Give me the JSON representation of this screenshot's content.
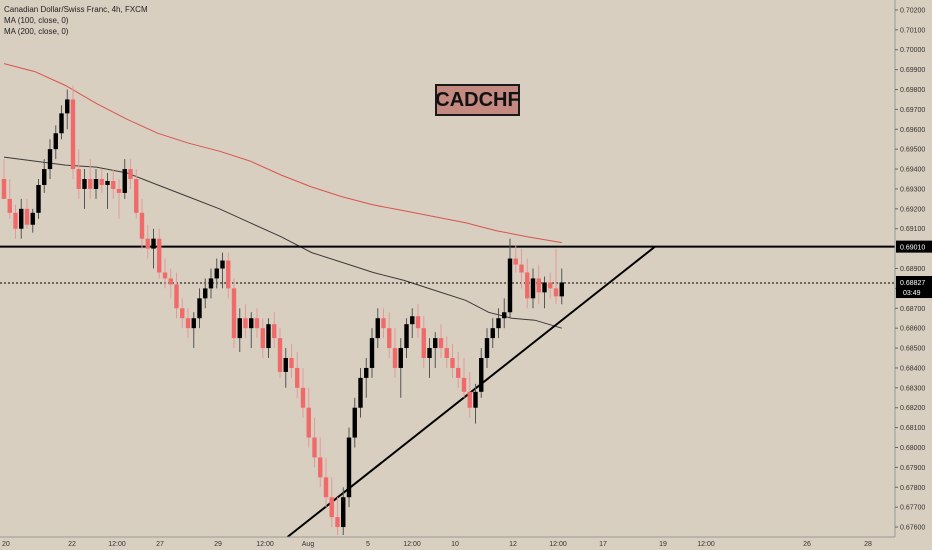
{
  "chart_data": {
    "type": "candlestick",
    "title": "Canadian Dollar/Swiss Franc, 4h, FXCM",
    "indicators": [
      "MA (100, close, 0)",
      "MA (200, close, 0)"
    ],
    "symbol_label": "CADCHF",
    "y_range": [
      0.6755,
      0.7025
    ],
    "y_ticks": [
      0.702,
      0.701,
      0.7,
      0.699,
      0.698,
      0.697,
      0.696,
      0.695,
      0.694,
      0.693,
      0.692,
      0.691,
      0.689,
      0.688,
      0.687,
      0.686,
      0.685,
      0.684,
      0.683,
      0.682,
      0.681,
      0.68,
      0.679,
      0.678,
      0.677,
      0.676
    ],
    "y_tick_labels": [
      "0.70200",
      "0.70100",
      "0.70000",
      "0.69900",
      "0.69800",
      "0.69700",
      "0.69600",
      "0.69500",
      "0.69400",
      "0.69300",
      "0.69200",
      "0.69100",
      "0.68900",
      "0.68800",
      "0.68700",
      "0.68600",
      "0.68500",
      "0.68400",
      "0.68300",
      "0.68200",
      "0.68100",
      "0.68000",
      "0.67900",
      "0.67800",
      "0.67700",
      "0.67600"
    ],
    "x_tick_labels": [
      "20",
      "22",
      "12:00",
      "27",
      "29",
      "12:00",
      "Aug",
      "5",
      "12:00",
      "10",
      "12",
      "12:00",
      "17",
      "19",
      "12:00",
      "26",
      "28"
    ],
    "bar_index_range": [
      0,
      200
    ],
    "x_ticks": [
      0,
      13,
      26,
      40,
      53,
      66,
      79,
      92,
      105,
      118,
      130,
      143,
      155,
      168,
      181,
      194,
      207
    ],
    "support_level": {
      "value": 0.6901,
      "label": "0.69010"
    },
    "current_price": {
      "value": 0.68827,
      "label": "0.68827",
      "countdown": "03:49"
    },
    "trendline": {
      "from": {
        "index": 74,
        "value": 0.6755
      },
      "to": {
        "index": 170,
        "value": 0.6901
      }
    },
    "ma200": [
      [
        0,
        0.6993
      ],
      [
        8,
        0.6989
      ],
      [
        16,
        0.6982
      ],
      [
        24,
        0.6973
      ],
      [
        32,
        0.6965
      ],
      [
        40,
        0.6958
      ],
      [
        48,
        0.6953
      ],
      [
        56,
        0.6949
      ],
      [
        64,
        0.6944
      ],
      [
        72,
        0.6937
      ],
      [
        80,
        0.6931
      ],
      [
        88,
        0.6926
      ],
      [
        96,
        0.6922
      ],
      [
        104,
        0.6919
      ],
      [
        112,
        0.6916
      ],
      [
        120,
        0.6913
      ],
      [
        128,
        0.6909
      ],
      [
        136,
        0.6906
      ],
      [
        145,
        0.6903
      ]
    ],
    "ma100": [
      [
        0,
        0.6946
      ],
      [
        8,
        0.6944
      ],
      [
        16,
        0.6942
      ],
      [
        24,
        0.6941
      ],
      [
        32,
        0.6938
      ],
      [
        40,
        0.6932
      ],
      [
        48,
        0.6926
      ],
      [
        56,
        0.692
      ],
      [
        64,
        0.6913
      ],
      [
        72,
        0.6906
      ],
      [
        80,
        0.6898
      ],
      [
        88,
        0.6893
      ],
      [
        96,
        0.6888
      ],
      [
        104,
        0.6884
      ],
      [
        112,
        0.6879
      ],
      [
        120,
        0.6874
      ],
      [
        126,
        0.6868
      ],
      [
        132,
        0.6865
      ],
      [
        138,
        0.6864
      ],
      [
        145,
        0.686
      ]
    ],
    "candles": [
      [
        0,
        0.6935,
        0.6945,
        0.6925,
        0.6925
      ],
      [
        1,
        0.6925,
        0.6935,
        0.6915,
        0.6918
      ],
      [
        2,
        0.6918,
        0.6922,
        0.6905,
        0.691
      ],
      [
        3,
        0.691,
        0.6925,
        0.6905,
        0.692
      ],
      [
        4,
        0.692,
        0.6925,
        0.691,
        0.6912
      ],
      [
        5,
        0.6912,
        0.692,
        0.6908,
        0.6918
      ],
      [
        6,
        0.6918,
        0.6935,
        0.6915,
        0.6932
      ],
      [
        7,
        0.6932,
        0.6945,
        0.6928,
        0.694
      ],
      [
        8,
        0.694,
        0.6955,
        0.6935,
        0.695
      ],
      [
        9,
        0.695,
        0.6962,
        0.6945,
        0.6958
      ],
      [
        10,
        0.6958,
        0.6972,
        0.6955,
        0.6968
      ],
      [
        11,
        0.6968,
        0.698,
        0.696,
        0.6975
      ],
      [
        12,
        0.6975,
        0.6982,
        0.6935,
        0.694
      ],
      [
        13,
        0.694,
        0.695,
        0.6925,
        0.693
      ],
      [
        14,
        0.693,
        0.694,
        0.692,
        0.6935
      ],
      [
        15,
        0.6935,
        0.6945,
        0.6925,
        0.693
      ],
      [
        16,
        0.693,
        0.694,
        0.6925,
        0.6935
      ],
      [
        17,
        0.6935,
        0.694,
        0.6928,
        0.6932
      ],
      [
        18,
        0.6932,
        0.6938,
        0.692,
        0.6934
      ],
      [
        19,
        0.6934,
        0.694,
        0.6925,
        0.693
      ],
      [
        20,
        0.693,
        0.6935,
        0.6915,
        0.6928
      ],
      [
        21,
        0.6928,
        0.6945,
        0.6925,
        0.694
      ],
      [
        22,
        0.694,
        0.6945,
        0.693,
        0.6935
      ],
      [
        23,
        0.6935,
        0.694,
        0.6915,
        0.6918
      ],
      [
        24,
        0.6918,
        0.6925,
        0.69,
        0.6905
      ],
      [
        25,
        0.6905,
        0.6912,
        0.6895,
        0.69
      ],
      [
        26,
        0.69,
        0.691,
        0.689,
        0.6905
      ],
      [
        27,
        0.6905,
        0.691,
        0.6885,
        0.6888
      ],
      [
        28,
        0.6888,
        0.6895,
        0.688,
        0.6885
      ],
      [
        29,
        0.6885,
        0.689,
        0.6875,
        0.6882
      ],
      [
        30,
        0.6882,
        0.6888,
        0.6865,
        0.687
      ],
      [
        31,
        0.687,
        0.6875,
        0.686,
        0.6865
      ],
      [
        32,
        0.6865,
        0.687,
        0.6855,
        0.686
      ],
      [
        33,
        0.686,
        0.6868,
        0.685,
        0.6865
      ],
      [
        34,
        0.6865,
        0.688,
        0.686,
        0.6875
      ],
      [
        35,
        0.6875,
        0.6885,
        0.687,
        0.688
      ],
      [
        36,
        0.688,
        0.689,
        0.6875,
        0.6885
      ],
      [
        37,
        0.6885,
        0.6895,
        0.688,
        0.689
      ],
      [
        38,
        0.689,
        0.6898,
        0.688,
        0.6894
      ],
      [
        39,
        0.6894,
        0.6898,
        0.6875,
        0.688
      ],
      [
        40,
        0.688,
        0.6885,
        0.685,
        0.6855
      ],
      [
        41,
        0.6855,
        0.687,
        0.6848,
        0.6865
      ],
      [
        42,
        0.6865,
        0.6872,
        0.6855,
        0.686
      ],
      [
        43,
        0.686,
        0.6868,
        0.685,
        0.6865
      ],
      [
        44,
        0.6865,
        0.687,
        0.6855,
        0.686
      ],
      [
        45,
        0.686,
        0.6865,
        0.6845,
        0.685
      ],
      [
        46,
        0.685,
        0.6865,
        0.6845,
        0.6862
      ],
      [
        47,
        0.6862,
        0.6868,
        0.685,
        0.6855
      ],
      [
        48,
        0.6855,
        0.686,
        0.6835,
        0.6838
      ],
      [
        49,
        0.6838,
        0.685,
        0.683,
        0.6845
      ],
      [
        50,
        0.6845,
        0.6852,
        0.6835,
        0.684
      ],
      [
        51,
        0.684,
        0.6848,
        0.6825,
        0.683
      ],
      [
        52,
        0.683,
        0.684,
        0.6815,
        0.682
      ],
      [
        53,
        0.682,
        0.683,
        0.68,
        0.6805
      ],
      [
        54,
        0.6805,
        0.6815,
        0.679,
        0.6795
      ],
      [
        55,
        0.6795,
        0.6805,
        0.678,
        0.6785
      ],
      [
        56,
        0.6785,
        0.6795,
        0.677,
        0.6775
      ],
      [
        57,
        0.6775,
        0.6785,
        0.676,
        0.6765
      ],
      [
        58,
        0.6765,
        0.6775,
        0.6756,
        0.676
      ],
      [
        59,
        0.676,
        0.678,
        0.6756,
        0.6775
      ],
      [
        60,
        0.6775,
        0.681,
        0.677,
        0.6805
      ],
      [
        61,
        0.6805,
        0.6825,
        0.68,
        0.682
      ],
      [
        62,
        0.682,
        0.684,
        0.6815,
        0.6835
      ],
      [
        63,
        0.6835,
        0.6845,
        0.6825,
        0.684
      ],
      [
        64,
        0.684,
        0.686,
        0.6835,
        0.6855
      ],
      [
        65,
        0.6855,
        0.687,
        0.685,
        0.6865
      ],
      [
        66,
        0.6865,
        0.687,
        0.6855,
        0.686
      ],
      [
        67,
        0.686,
        0.6868,
        0.6845,
        0.685
      ],
      [
        68,
        0.685,
        0.686,
        0.6835,
        0.684
      ],
      [
        69,
        0.684,
        0.6855,
        0.6825,
        0.685
      ],
      [
        70,
        0.685,
        0.6865,
        0.6845,
        0.6862
      ],
      [
        71,
        0.6862,
        0.687,
        0.6855,
        0.6866
      ],
      [
        72,
        0.6866,
        0.6872,
        0.6855,
        0.686
      ],
      [
        73,
        0.686,
        0.6866,
        0.684,
        0.6845
      ],
      [
        74,
        0.6845,
        0.6855,
        0.6835,
        0.685
      ],
      [
        75,
        0.685,
        0.6858,
        0.684,
        0.6855
      ],
      [
        76,
        0.6855,
        0.6862,
        0.6845,
        0.685
      ],
      [
        77,
        0.685,
        0.6856,
        0.684,
        0.6845
      ],
      [
        78,
        0.6845,
        0.6852,
        0.6835,
        0.684
      ],
      [
        79,
        0.684,
        0.6848,
        0.683,
        0.6835
      ],
      [
        80,
        0.6835,
        0.6845,
        0.6825,
        0.6828
      ],
      [
        81,
        0.6828,
        0.6838,
        0.6815,
        0.682
      ],
      [
        82,
        0.682,
        0.6832,
        0.6812,
        0.6828
      ],
      [
        83,
        0.6828,
        0.685,
        0.6825,
        0.6845
      ],
      [
        84,
        0.6845,
        0.686,
        0.684,
        0.6855
      ],
      [
        85,
        0.6855,
        0.6865,
        0.685,
        0.686
      ],
      [
        86,
        0.686,
        0.687,
        0.6855,
        0.6865
      ],
      [
        87,
        0.6865,
        0.6875,
        0.686,
        0.6868
      ],
      [
        88,
        0.6868,
        0.6905,
        0.6865,
        0.6895
      ],
      [
        89,
        0.6895,
        0.6902,
        0.6888,
        0.6892
      ],
      [
        90,
        0.6892,
        0.69,
        0.688,
        0.6888
      ],
      [
        91,
        0.6888,
        0.6895,
        0.687,
        0.6875
      ],
      [
        92,
        0.6875,
        0.689,
        0.687,
        0.6885
      ],
      [
        93,
        0.6885,
        0.6892,
        0.6872,
        0.6878
      ],
      [
        94,
        0.6878,
        0.6886,
        0.687,
        0.6883
      ],
      [
        95,
        0.6883,
        0.6888,
        0.6875,
        0.688
      ],
      [
        96,
        0.688,
        0.69,
        0.6872,
        0.6876
      ],
      [
        97,
        0.6876,
        0.689,
        0.6872,
        0.6883
      ]
    ]
  }
}
